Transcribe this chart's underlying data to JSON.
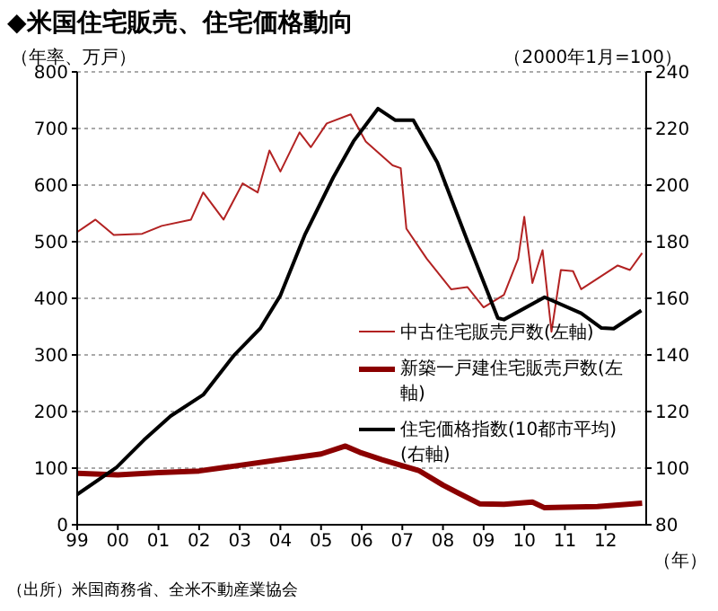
{
  "chart_data": {
    "type": "line",
    "title": "◆米国住宅販売、住宅価格動向",
    "ylabel": "（年率、万戸）",
    "y2label": "（2000年1月=100）",
    "xlabel": "（年）",
    "annotations": [
      "（出所）米国商務省、全米不動産業協会"
    ],
    "xlim": [
      1999,
      2013
    ],
    "xticks": [
      {
        "value": 1999,
        "label": "99"
      },
      {
        "value": 2000,
        "label": "00"
      },
      {
        "value": 2001,
        "label": "01"
      },
      {
        "value": 2002,
        "label": "02"
      },
      {
        "value": 2003,
        "label": "03"
      },
      {
        "value": 2004,
        "label": "04"
      },
      {
        "value": 2005,
        "label": "05"
      },
      {
        "value": 2006,
        "label": "06"
      },
      {
        "value": 2007,
        "label": "07"
      },
      {
        "value": 2008,
        "label": "08"
      },
      {
        "value": 2009,
        "label": "09"
      },
      {
        "value": 2010,
        "label": "10"
      },
      {
        "value": 2011,
        "label": "11"
      },
      {
        "value": 2012,
        "label": "12"
      }
    ],
    "ylim": [
      0,
      800
    ],
    "yticks": [
      0,
      100,
      200,
      300,
      400,
      500,
      600,
      700,
      800
    ],
    "y2lim": [
      80,
      240
    ],
    "y2ticks": [
      80,
      100,
      120,
      140,
      160,
      180,
      200,
      220,
      240
    ],
    "grid": "y",
    "legend": "right",
    "series": [
      {
        "name": "中古住宅販売戸数(左軸)",
        "color": "#b22222",
        "x": [
          1999.0,
          1999.45,
          1999.9,
          2000.6,
          2001.08,
          2001.8,
          2002.1,
          2002.6,
          2003.07,
          2003.44,
          2003.73,
          2004.0,
          2004.47,
          2004.75,
          2005.14,
          2005.73,
          2006.1,
          2006.76,
          2006.96,
          2007.1,
          2007.6,
          2008.2,
          2008.6,
          2009.0,
          2009.5,
          2009.85,
          2010.0,
          2010.2,
          2010.45,
          2010.67,
          2010.9,
          2011.2,
          2011.4,
          2011.85,
          2012.3,
          2012.6,
          2012.9
        ],
        "values": [
          517,
          539,
          512,
          514,
          528,
          539,
          587,
          539,
          603,
          587,
          661,
          624,
          693,
          667,
          709,
          725,
          677,
          635,
          630,
          523,
          470,
          416,
          420,
          384,
          406,
          470,
          544,
          427,
          485,
          341,
          450,
          448,
          416,
          437,
          458,
          450,
          480
        ]
      },
      {
        "name": "新築一戸建住宅販売戸数(左軸)",
        "color": "#8b0000",
        "x": [
          1999.0,
          2000.0,
          2001.0,
          2002.0,
          2003.0,
          2004.0,
          2005.0,
          2005.6,
          2005.95,
          2006.5,
          2007.4,
          2008.0,
          2008.9,
          2009.5,
          2010.2,
          2010.5,
          2011.0,
          2011.8,
          2012.9
        ],
        "values": [
          91,
          88,
          92,
          95,
          105,
          115,
          125,
          139,
          128,
          115,
          96,
          70,
          37,
          36,
          40,
          30,
          31,
          32,
          38
        ]
      },
      {
        "name": "住宅価格指数(10都市平均)(右軸)",
        "color": "#000000",
        "axis": "y2",
        "x": [
          1999.0,
          1999.97,
          2000.64,
          2001.3,
          2002.1,
          2002.85,
          2003.5,
          2004.0,
          2004.6,
          2005.3,
          2005.8,
          2006.4,
          2006.83,
          2007.27,
          2007.86,
          2008.6,
          2009.35,
          2009.5,
          2010.5,
          2011.4,
          2011.9,
          2012.2,
          2012.88
        ],
        "values": [
          90.7,
          100.3,
          109.9,
          118.4,
          125.9,
          139.7,
          149.3,
          161,
          182.4,
          202.7,
          215.5,
          227,
          222.9,
          222.9,
          208,
          180.3,
          153,
          152.5,
          160.4,
          154.7,
          149.5,
          149.3,
          155.7
        ]
      }
    ]
  }
}
